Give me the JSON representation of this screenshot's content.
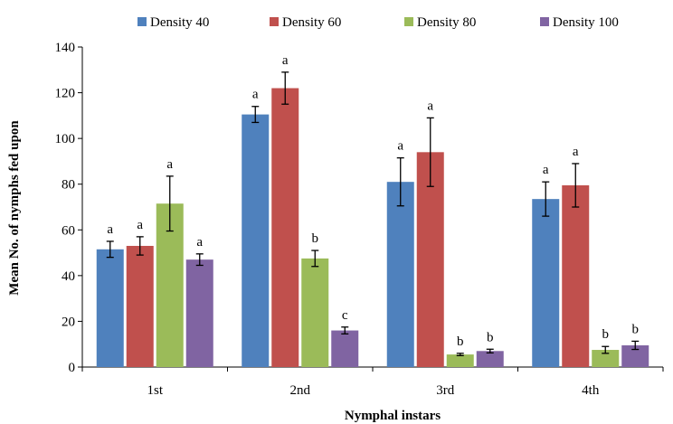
{
  "chart_data": {
    "type": "bar",
    "title": "",
    "xlabel": "Nymphal instars",
    "ylabel": "Mean No. of nymphs fed upon",
    "ylim": [
      0,
      140
    ],
    "yticks": [
      0,
      20,
      40,
      60,
      80,
      100,
      120,
      140
    ],
    "grid": false,
    "legend_position": "top",
    "categories": [
      "1st",
      "2nd",
      "3rd",
      "4th"
    ],
    "series": [
      {
        "name": "Density 40",
        "color": "#4f81bd",
        "values": [
          51.5,
          110.5,
          81,
          73.5
        ],
        "errors": [
          3.5,
          3.5,
          10.5,
          7.5
        ],
        "letters": [
          "a",
          "a",
          "a",
          "a"
        ]
      },
      {
        "name": "Density 60",
        "color": "#c0504d",
        "values": [
          53,
          122,
          94,
          79.5
        ],
        "errors": [
          4,
          7,
          15,
          9.5
        ],
        "letters": [
          "a",
          "a",
          "a",
          "a"
        ]
      },
      {
        "name": "Density 80",
        "color": "#9bbb59",
        "values": [
          71.5,
          47.5,
          5.5,
          7.5
        ],
        "errors": [
          12,
          3.5,
          0.5,
          1.5
        ],
        "letters": [
          "a",
          "b",
          "b",
          "b"
        ]
      },
      {
        "name": "Density 100",
        "color": "#8064a2",
        "values": [
          47,
          16,
          7,
          9.5
        ],
        "errors": [
          2.5,
          1.5,
          0.8,
          1.8
        ],
        "letters": [
          "a",
          "c",
          "b",
          "b"
        ]
      }
    ]
  }
}
